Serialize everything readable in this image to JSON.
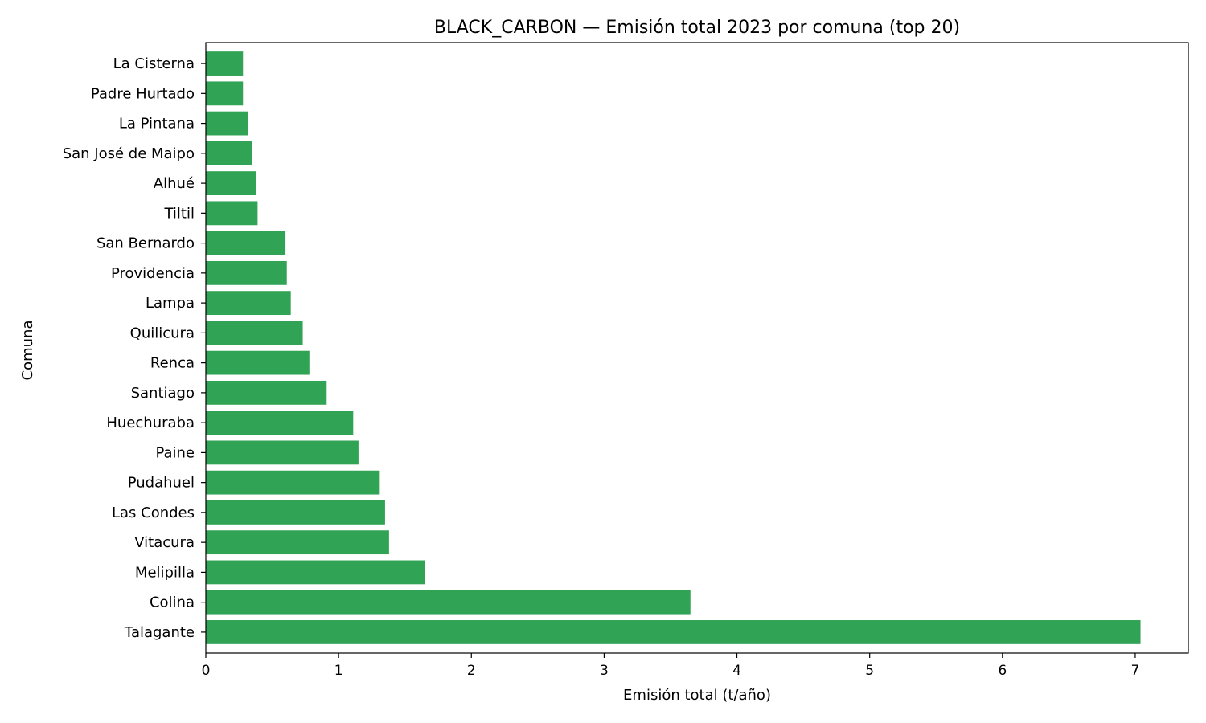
{
  "chart_data": {
    "type": "bar",
    "orientation": "horizontal",
    "title": "BLACK_CARBON — Emisión total 2023 por comuna (top 20)",
    "xlabel": "Emisión total (t/año)",
    "ylabel": "Comuna",
    "xlim": [
      0,
      7.4
    ],
    "xticks": [
      0,
      1,
      2,
      3,
      4,
      5,
      6,
      7
    ],
    "grid": false,
    "bar_color": "#31a354",
    "categories": [
      "Talagante",
      "Colina",
      "Melipilla",
      "Vitacura",
      "Las Condes",
      "Pudahuel",
      "Paine",
      "Huechuraba",
      "Santiago",
      "Renca",
      "Quilicura",
      "Lampa",
      "Providencia",
      "San Bernardo",
      "Tiltil",
      "Alhué",
      "San José de Maipo",
      "La Pintana",
      "Padre Hurtado",
      "La Cisterna"
    ],
    "values": [
      7.04,
      3.65,
      1.65,
      1.38,
      1.35,
      1.31,
      1.15,
      1.11,
      0.91,
      0.78,
      0.73,
      0.64,
      0.61,
      0.6,
      0.39,
      0.38,
      0.35,
      0.32,
      0.28,
      0.28
    ]
  }
}
